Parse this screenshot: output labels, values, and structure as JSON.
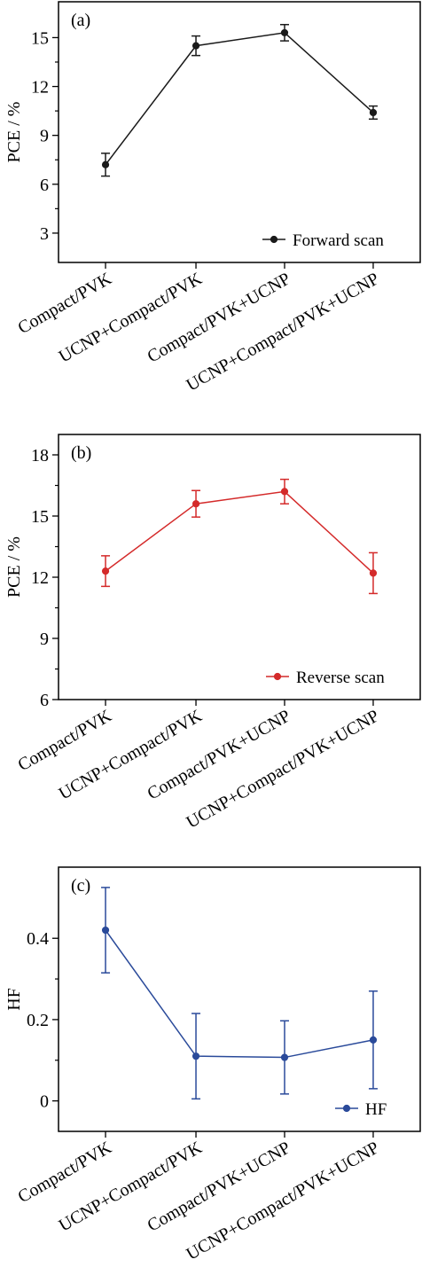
{
  "chart_data": [
    {
      "type": "line",
      "panel_label": "(a)",
      "ylabel": "PCE / %",
      "ylim": [
        1.2,
        17.2
      ],
      "yticks": [
        3,
        6,
        9,
        12,
        15
      ],
      "categories": [
        "Compact/PVK",
        "UCNP+Compact/PVK",
        "Compact/PVK+UCNP",
        "UCNP+Compact/PVK+UCNP"
      ],
      "series": [
        {
          "name": "Forward scan",
          "color": "#1a1a1a",
          "values": [
            7.2,
            14.5,
            15.3,
            10.4
          ],
          "errors": [
            0.7,
            0.6,
            0.5,
            0.4
          ]
        }
      ],
      "legend_position": "bottom-right",
      "grid": false
    },
    {
      "type": "line",
      "panel_label": "(b)",
      "ylabel": "PCE / %",
      "ylim": [
        6,
        19
      ],
      "yticks": [
        6,
        9,
        12,
        15,
        18
      ],
      "categories": [
        "Compact/PVK",
        "UCNP+Compact/PVK",
        "Compact/PVK+UCNP",
        "UCNP+Compact/PVK+UCNP"
      ],
      "series": [
        {
          "name": "Reverse scan",
          "color": "#d42a2a",
          "values": [
            12.3,
            15.6,
            16.2,
            12.2
          ],
          "errors": [
            0.75,
            0.65,
            0.6,
            1.0
          ]
        }
      ],
      "legend_position": "bottom-right",
      "grid": false
    },
    {
      "type": "line",
      "panel_label": "(c)",
      "ylabel": "HF",
      "ylim": [
        -0.075,
        0.575
      ],
      "yticks": [
        0,
        0.2,
        0.4
      ],
      "ytick_labels": [
        "0",
        "0.2",
        "0.4"
      ],
      "categories": [
        "Compact/PVK",
        "UCNP+Compact/PVK",
        "Compact/PVK+UCNP",
        "UCNP+Compact/PVK+UCNP"
      ],
      "series": [
        {
          "name": "HF",
          "color": "#2a4a9a",
          "values": [
            0.42,
            0.11,
            0.107,
            0.15
          ],
          "errors": [
            0.105,
            0.105,
            0.09,
            0.12
          ]
        }
      ],
      "legend_position": "bottom-right",
      "grid": false
    }
  ]
}
